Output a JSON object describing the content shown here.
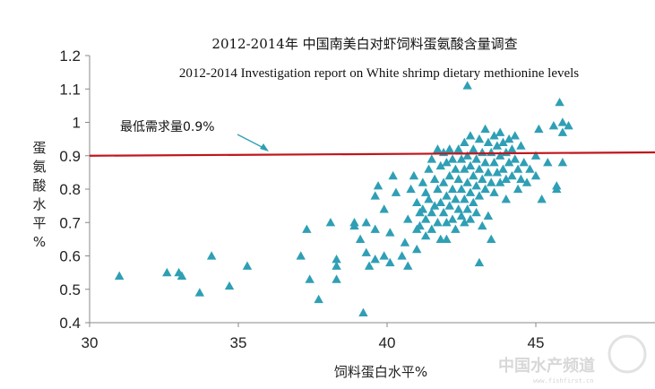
{
  "chart_data": {
    "type": "scatter",
    "title": "2012-2014年 中国南美白对虾饲料蛋氨酸含量调查",
    "subtitle": "2012-2014  Investigation  report on White shrimp dietary methionine  levels",
    "xlabel": "饲料蛋白水平%",
    "ylabel": "蛋氨酸水平%",
    "ylabel_chars": [
      "蛋",
      "氨",
      "酸",
      "水",
      "平",
      "%"
    ],
    "xlim": [
      30,
      49
    ],
    "ylim": [
      0.4,
      1.2
    ],
    "x_ticks": [
      30,
      35,
      40,
      45
    ],
    "x_tick_labels": [
      "30",
      "35",
      "40",
      "45"
    ],
    "y_ticks": [
      0.4,
      0.5,
      0.6,
      0.7,
      0.8,
      0.9,
      1.0,
      1.1,
      1.2
    ],
    "y_tick_labels": [
      "0.4",
      "0.5",
      "0.6",
      "0.7",
      "0.8",
      "0.9",
      "1",
      "1.1",
      "1.2"
    ],
    "grid": false,
    "marker_color": "#2f9fb5",
    "reference_line": {
      "y": 0.9,
      "y_start": 0.9,
      "y_end": 0.91,
      "color": "#c0161b",
      "label": "最低需求量0.9%"
    },
    "annotation_arrow_color": "#2f9fb5",
    "points": [
      [
        31.0,
        0.54
      ],
      [
        32.6,
        0.55
      ],
      [
        33.0,
        0.55
      ],
      [
        33.1,
        0.54
      ],
      [
        33.7,
        0.49
      ],
      [
        34.1,
        0.6
      ],
      [
        34.7,
        0.51
      ],
      [
        35.3,
        0.57
      ],
      [
        37.1,
        0.6
      ],
      [
        37.3,
        0.68
      ],
      [
        37.4,
        0.53
      ],
      [
        37.7,
        0.47
      ],
      [
        38.1,
        0.7
      ],
      [
        38.3,
        0.59
      ],
      [
        38.3,
        0.57
      ],
      [
        38.3,
        0.53
      ],
      [
        38.9,
        0.7
      ],
      [
        38.9,
        0.69
      ],
      [
        39.1,
        0.65
      ],
      [
        39.2,
        0.43
      ],
      [
        39.3,
        0.7
      ],
      [
        39.3,
        0.61
      ],
      [
        39.4,
        0.57
      ],
      [
        39.6,
        0.68
      ],
      [
        39.6,
        0.78
      ],
      [
        39.6,
        0.59
      ],
      [
        39.7,
        0.81
      ],
      [
        39.9,
        0.74
      ],
      [
        39.9,
        0.6
      ],
      [
        40.1,
        0.67
      ],
      [
        40.1,
        0.58
      ],
      [
        40.2,
        0.84
      ],
      [
        40.3,
        0.79
      ],
      [
        40.5,
        0.6
      ],
      [
        40.6,
        0.64
      ],
      [
        40.7,
        0.71
      ],
      [
        40.7,
        0.57
      ],
      [
        40.8,
        0.8
      ],
      [
        40.9,
        0.84
      ],
      [
        41.0,
        0.76
      ],
      [
        41.0,
        0.68
      ],
      [
        41.0,
        0.62
      ],
      [
        41.1,
        0.73
      ],
      [
        41.1,
        0.69
      ],
      [
        41.2,
        0.82
      ],
      [
        41.2,
        0.74
      ],
      [
        41.3,
        0.79
      ],
      [
        41.3,
        0.71
      ],
      [
        41.3,
        0.66
      ],
      [
        41.4,
        0.86
      ],
      [
        41.4,
        0.77
      ],
      [
        41.5,
        0.89
      ],
      [
        41.5,
        0.73
      ],
      [
        41.5,
        0.68
      ],
      [
        41.6,
        0.83
      ],
      [
        41.6,
        0.75
      ],
      [
        41.7,
        0.92
      ],
      [
        41.7,
        0.8
      ],
      [
        41.7,
        0.7
      ],
      [
        41.8,
        0.87
      ],
      [
        41.8,
        0.76
      ],
      [
        41.8,
        0.65
      ],
      [
        41.9,
        0.91
      ],
      [
        41.9,
        0.82
      ],
      [
        41.9,
        0.73
      ],
      [
        42.0,
        0.88
      ],
      [
        42.0,
        0.78
      ],
      [
        42.0,
        0.7
      ],
      [
        42.0,
        0.65
      ],
      [
        42.1,
        0.92
      ],
      [
        42.1,
        0.84
      ],
      [
        42.1,
        0.75
      ],
      [
        42.2,
        0.89
      ],
      [
        42.2,
        0.8
      ],
      [
        42.2,
        0.71
      ],
      [
        42.3,
        0.86
      ],
      [
        42.3,
        0.77
      ],
      [
        42.3,
        0.68
      ],
      [
        42.4,
        0.92
      ],
      [
        42.4,
        0.83
      ],
      [
        42.4,
        0.74
      ],
      [
        42.5,
        0.89
      ],
      [
        42.5,
        0.8
      ],
      [
        42.5,
        0.72
      ],
      [
        42.6,
        0.94
      ],
      [
        42.6,
        0.86
      ],
      [
        42.6,
        0.77
      ],
      [
        42.6,
        0.7
      ],
      [
        42.7,
        1.11
      ],
      [
        42.7,
        0.9
      ],
      [
        42.7,
        0.82
      ],
      [
        42.7,
        0.74
      ],
      [
        42.8,
        0.96
      ],
      [
        42.8,
        0.87
      ],
      [
        42.8,
        0.79
      ],
      [
        42.8,
        0.71
      ],
      [
        42.9,
        0.92
      ],
      [
        42.9,
        0.84
      ],
      [
        42.9,
        0.76
      ],
      [
        43.0,
        0.89
      ],
      [
        43.0,
        0.81
      ],
      [
        43.0,
        0.73
      ],
      [
        43.1,
        0.95
      ],
      [
        43.1,
        0.86
      ],
      [
        43.1,
        0.78
      ],
      [
        43.1,
        0.58
      ],
      [
        43.2,
        0.91
      ],
      [
        43.2,
        0.83
      ],
      [
        43.2,
        0.69
      ],
      [
        43.3,
        0.98
      ],
      [
        43.3,
        0.88
      ],
      [
        43.3,
        0.8
      ],
      [
        43.4,
        0.94
      ],
      [
        43.4,
        0.85
      ],
      [
        43.4,
        0.72
      ],
      [
        43.5,
        0.91
      ],
      [
        43.5,
        0.82
      ],
      [
        43.5,
        0.65
      ],
      [
        43.6,
        0.96
      ],
      [
        43.6,
        0.88
      ],
      [
        43.6,
        0.79
      ],
      [
        43.7,
        0.93
      ],
      [
        43.7,
        0.85
      ],
      [
        43.8,
        0.97
      ],
      [
        43.8,
        0.9
      ],
      [
        43.8,
        0.82
      ],
      [
        43.9,
        0.94
      ],
      [
        43.9,
        0.86
      ],
      [
        44.0,
        0.91
      ],
      [
        44.0,
        0.83
      ],
      [
        44.0,
        0.77
      ],
      [
        44.1,
        0.95
      ],
      [
        44.1,
        0.88
      ],
      [
        44.2,
        0.92
      ],
      [
        44.2,
        0.84
      ],
      [
        44.3,
        0.96
      ],
      [
        44.3,
        0.89
      ],
      [
        44.4,
        0.86
      ],
      [
        44.4,
        0.8
      ],
      [
        44.5,
        0.93
      ],
      [
        44.5,
        0.83
      ],
      [
        44.6,
        0.88
      ],
      [
        44.7,
        0.82
      ],
      [
        44.8,
        0.86
      ],
      [
        45.0,
        0.9
      ],
      [
        45.0,
        0.84
      ],
      [
        45.1,
        0.98
      ],
      [
        45.2,
        0.77
      ],
      [
        45.4,
        0.88
      ],
      [
        45.6,
        0.99
      ],
      [
        45.7,
        0.81
      ],
      [
        45.7,
        0.8
      ],
      [
        45.8,
        1.06
      ],
      [
        45.9,
        1.0
      ],
      [
        45.9,
        0.97
      ],
      [
        45.9,
        0.88
      ],
      [
        46.1,
        0.99
      ]
    ]
  },
  "watermark": {
    "text": "中国水产频道",
    "url": "www.fishfirst.cn"
  }
}
